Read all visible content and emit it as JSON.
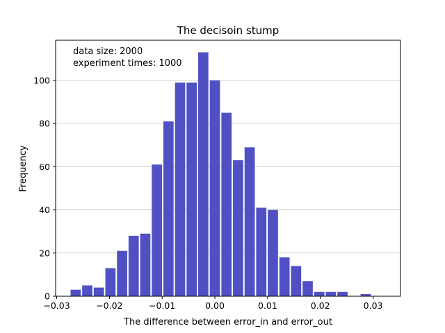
{
  "chart_data": {
    "type": "bar",
    "title": "The decisoin stump",
    "xlabel": "The difference between error_in and error_out",
    "ylabel": "Frequency",
    "annotations": [
      "data size: 2000",
      "experiment times: 1000"
    ],
    "xlim": [
      -0.0302,
      0.0352
    ],
    "ylim": [
      0,
      118.6
    ],
    "xticks": [
      -0.03,
      -0.02,
      -0.01,
      0.0,
      0.01,
      0.02,
      0.03
    ],
    "xtick_labels": [
      "−0.03",
      "−0.02",
      "−0.01",
      "0.00",
      "0.01",
      "0.02",
      "0.03"
    ],
    "yticks": [
      0,
      20,
      40,
      60,
      80,
      100
    ],
    "ytick_labels": [
      "0",
      "20",
      "40",
      "60",
      "80",
      "100"
    ],
    "grid": "y",
    "bar_color": "#5050c4",
    "bin_start": -0.0275,
    "bin_width": 0.0022,
    "bar_width_fraction": 0.88,
    "values": [
      3,
      5,
      4,
      13,
      21,
      28,
      29,
      61,
      81,
      99,
      99,
      113,
      100,
      85,
      63,
      69,
      41,
      40,
      18,
      14,
      7,
      2,
      2,
      2,
      0,
      1
    ]
  }
}
